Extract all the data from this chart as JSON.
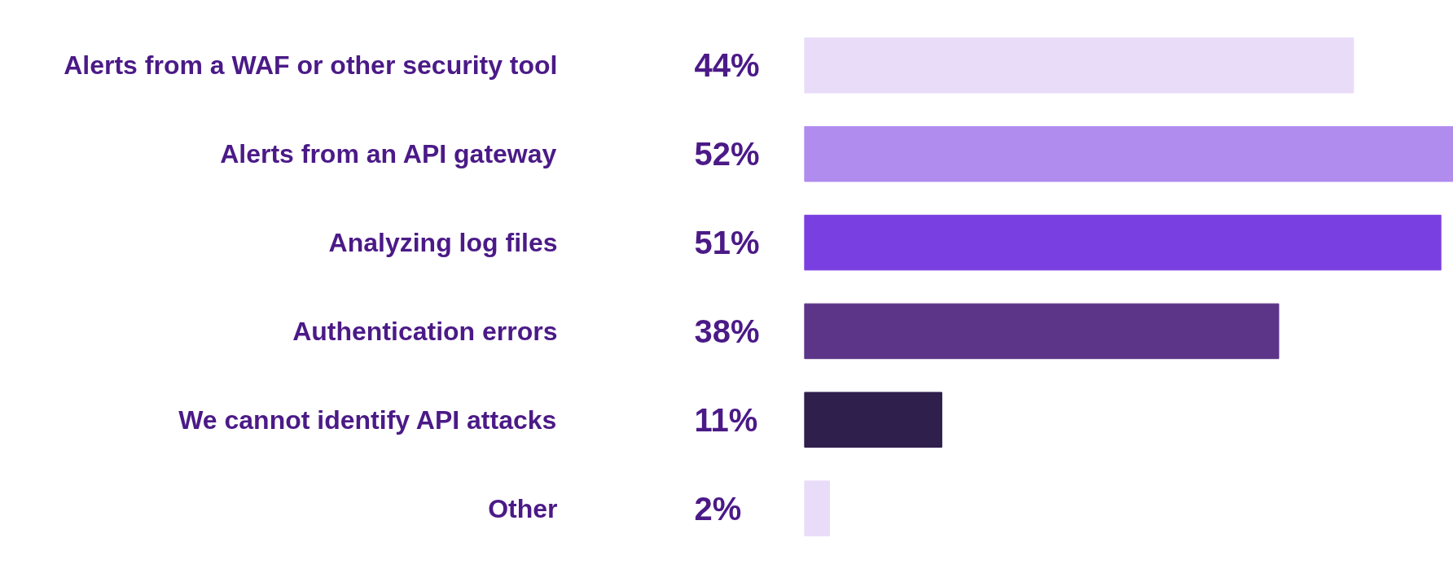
{
  "chart_data": {
    "type": "bar",
    "orientation": "horizontal",
    "categories": [
      "Alerts from a WAF or other security tool",
      "Alerts from an API gateway",
      "Analyzing log files",
      "Authentication errors",
      "We cannot identify API attacks",
      "Other"
    ],
    "values": [
      44,
      52,
      51,
      38,
      11,
      2
    ],
    "value_labels": [
      "44%",
      "52%",
      "51%",
      "38%",
      "11%",
      "2%"
    ],
    "colors": [
      "#e9dcf9",
      "#b08cef",
      "#7a3fe0",
      "#5c3589",
      "#2f1f4d",
      "#e9dcf9"
    ],
    "xlim": [
      0,
      52
    ]
  }
}
